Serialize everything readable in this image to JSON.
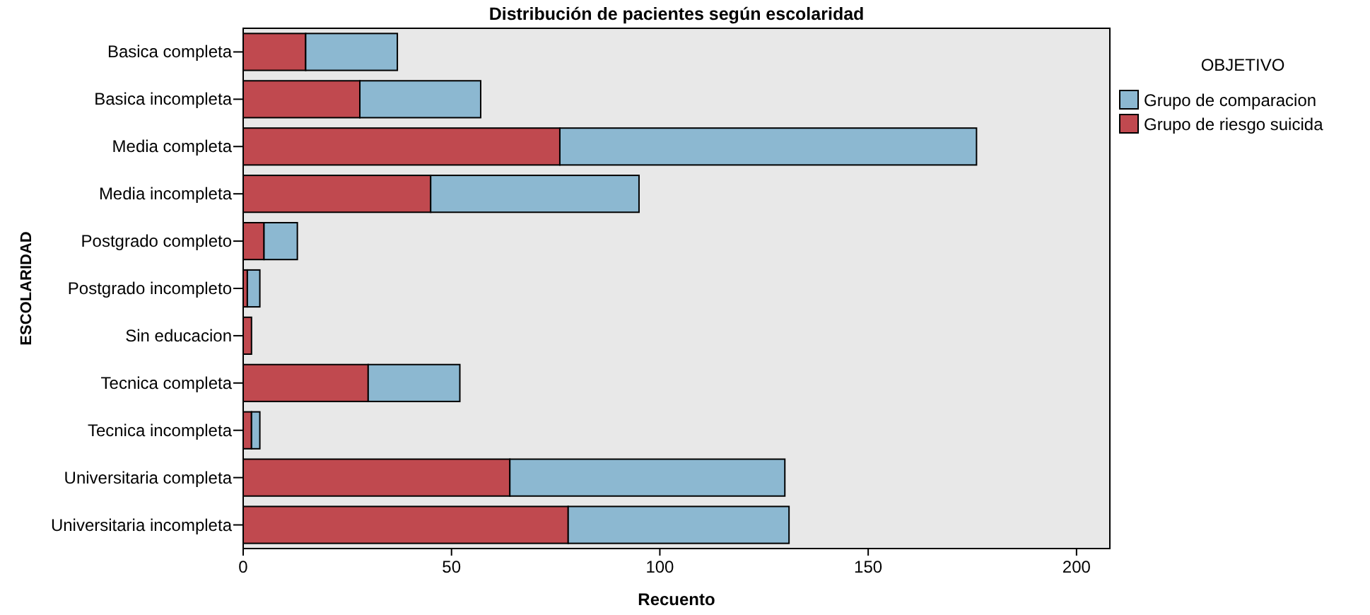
{
  "chart_data": {
    "type": "bar",
    "orientation": "horizontal",
    "stacked": true,
    "title": "Distribución de pacientes según escolaridad",
    "xlabel": "Recuento",
    "ylabel": "ESCOLARIDAD",
    "legend_title": "OBJETIVO",
    "legend": "right",
    "grid": false,
    "categories": [
      "Basica completa",
      "Basica incompleta",
      "Media completa",
      "Media incompleta",
      "Postgrado completo",
      "Postgrado incompleto",
      "Sin educacion",
      "Tecnica completa",
      "Tecnica incompleta",
      "Universitaria completa",
      "Universitaria incompleta"
    ],
    "series": [
      {
        "name": "Grupo de riesgo suicida",
        "color": "#c0494f",
        "values": [
          15,
          28,
          76,
          45,
          5,
          1,
          2,
          30,
          2,
          64,
          78
        ]
      },
      {
        "name": "Grupo de comparacion",
        "color": "#8cb8d1",
        "values": [
          22,
          29,
          100,
          50,
          8,
          3,
          0,
          22,
          2,
          66,
          53
        ]
      }
    ],
    "xlim": [
      0,
      208
    ],
    "xticks": [
      0,
      50,
      100,
      150,
      200
    ]
  }
}
